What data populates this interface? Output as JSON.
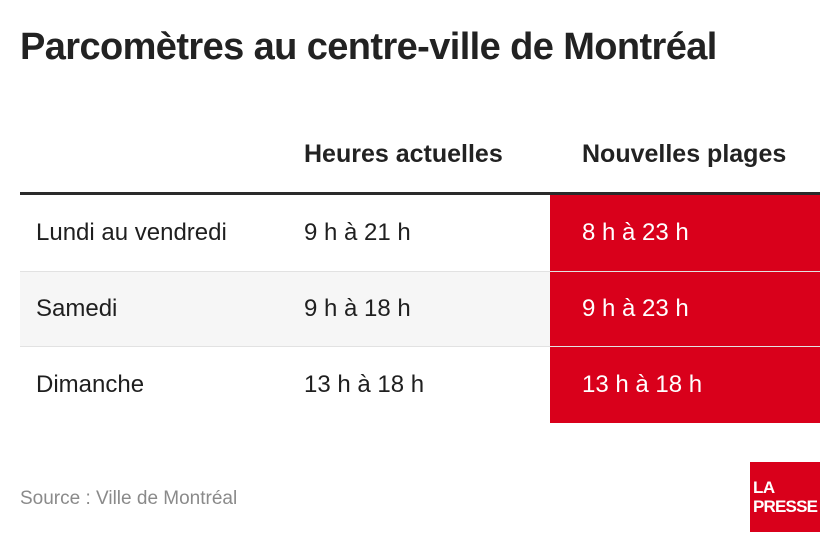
{
  "title": "Parcomètres au centre-ville de Montréal",
  "table": {
    "headers": {
      "day": "",
      "current": "Heures actuelles",
      "new": "Nouvelles plages"
    },
    "rows": [
      {
        "day": "Lundi au vendredi",
        "current": "9 h à 21 h",
        "new": "8 h à 23 h"
      },
      {
        "day": "Samedi",
        "current": "9 h à 18 h",
        "new": "9 h à 23 h"
      },
      {
        "day": "Dimanche",
        "current": "13 h à 18 h",
        "new": "13 h à 18 h"
      }
    ]
  },
  "source": "Source : Ville de Montréal",
  "logo": {
    "line1": "LA",
    "line2": "PRESSE"
  },
  "colors": {
    "accent_red": "#d9001b",
    "text": "#222222",
    "muted": "#8a8a8a",
    "row_shade": "#f6f6f6"
  }
}
